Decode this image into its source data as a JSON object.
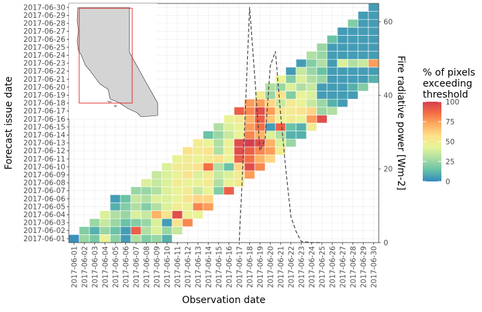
{
  "chart_data": {
    "type": "heatmap",
    "title": "",
    "xlabel": "Observation date",
    "ylabel": "Forecast issue date",
    "y2label": "Fire radiative power [Wm-2]",
    "y2lim": [
      0,
      65
    ],
    "y2ticks": [
      0,
      20,
      40,
      60
    ],
    "dates": [
      "2017-06-01",
      "2017-06-02",
      "2017-06-03",
      "2017-06-04",
      "2017-06-05",
      "2017-06-06",
      "2017-06-07",
      "2017-06-08",
      "2017-06-09",
      "2017-06-10",
      "2017-06-11",
      "2017-06-12",
      "2017-06-13",
      "2017-06-14",
      "2017-06-15",
      "2017-06-16",
      "2017-06-17",
      "2017-06-18",
      "2017-06-19",
      "2017-06-20",
      "2017-06-21",
      "2017-06-22",
      "2017-06-23",
      "2017-06-24",
      "2017-06-25",
      "2017-06-26",
      "2017-06-27",
      "2017-06-28",
      "2017-06-29",
      "2017-06-30"
    ],
    "cells": [
      [
        0,
        0,
        2
      ],
      [
        1,
        0,
        25
      ],
      [
        2,
        0,
        18
      ],
      [
        3,
        0,
        45
      ],
      [
        4,
        0,
        22
      ],
      [
        5,
        0,
        5
      ],
      [
        6,
        0,
        30
      ],
      [
        7,
        0,
        20
      ],
      [
        8,
        0,
        25
      ],
      [
        9,
        0,
        10
      ],
      [
        1,
        1,
        20
      ],
      [
        2,
        1,
        10
      ],
      [
        3,
        1,
        25
      ],
      [
        4,
        1,
        15
      ],
      [
        5,
        1,
        5
      ],
      [
        6,
        1,
        90
      ],
      [
        7,
        1,
        30
      ],
      [
        8,
        1,
        40
      ],
      [
        9,
        1,
        25
      ],
      [
        10,
        1,
        35
      ],
      [
        2,
        2,
        25
      ],
      [
        3,
        2,
        35
      ],
      [
        4,
        2,
        25
      ],
      [
        5,
        2,
        15
      ],
      [
        6,
        2,
        20
      ],
      [
        7,
        2,
        25
      ],
      [
        8,
        2,
        40
      ],
      [
        9,
        2,
        5
      ],
      [
        10,
        2,
        55
      ],
      [
        11,
        2,
        80
      ],
      [
        3,
        3,
        40
      ],
      [
        4,
        3,
        30
      ],
      [
        5,
        3,
        25
      ],
      [
        6,
        3,
        40
      ],
      [
        7,
        3,
        35
      ],
      [
        8,
        3,
        70
      ],
      [
        9,
        3,
        55
      ],
      [
        10,
        3,
        95
      ],
      [
        11,
        3,
        45
      ],
      [
        12,
        3,
        45
      ],
      [
        4,
        4,
        10
      ],
      [
        5,
        4,
        20
      ],
      [
        6,
        4,
        30
      ],
      [
        7,
        4,
        20
      ],
      [
        8,
        4,
        30
      ],
      [
        9,
        4,
        40
      ],
      [
        10,
        4,
        50
      ],
      [
        11,
        4,
        45
      ],
      [
        12,
        4,
        80
      ],
      [
        13,
        4,
        75
      ],
      [
        4,
        5,
        5
      ],
      [
        5,
        5,
        15
      ],
      [
        6,
        5,
        35
      ],
      [
        7,
        5,
        30
      ],
      [
        8,
        5,
        40
      ],
      [
        9,
        5,
        40
      ],
      [
        10,
        5,
        45
      ],
      [
        11,
        5,
        55
      ],
      [
        12,
        5,
        60
      ],
      [
        13,
        5,
        60
      ],
      [
        6,
        6,
        25
      ],
      [
        7,
        6,
        25
      ],
      [
        8,
        6,
        30
      ],
      [
        9,
        6,
        40
      ],
      [
        10,
        6,
        45
      ],
      [
        11,
        6,
        50
      ],
      [
        12,
        6,
        35
      ],
      [
        13,
        6,
        45
      ],
      [
        14,
        6,
        20
      ],
      [
        15,
        6,
        90
      ],
      [
        7,
        7,
        40
      ],
      [
        8,
        7,
        35
      ],
      [
        9,
        7,
        40
      ],
      [
        10,
        7,
        50
      ],
      [
        11,
        7,
        45
      ],
      [
        12,
        7,
        45
      ],
      [
        13,
        7,
        50
      ],
      [
        14,
        7,
        30
      ],
      [
        15,
        7,
        45
      ],
      [
        16,
        7,
        50
      ],
      [
        8,
        8,
        35
      ],
      [
        9,
        8,
        40
      ],
      [
        10,
        8,
        45
      ],
      [
        11,
        8,
        55
      ],
      [
        12,
        8,
        40
      ],
      [
        13,
        8,
        50
      ],
      [
        14,
        8,
        35
      ],
      [
        15,
        8,
        40
      ],
      [
        16,
        8,
        50
      ],
      [
        17,
        8,
        75
      ],
      [
        9,
        9,
        40
      ],
      [
        10,
        9,
        50
      ],
      [
        11,
        9,
        50
      ],
      [
        12,
        9,
        55
      ],
      [
        13,
        9,
        85
      ],
      [
        14,
        9,
        30
      ],
      [
        15,
        9,
        15
      ],
      [
        16,
        9,
        60
      ],
      [
        17,
        9,
        95
      ],
      [
        18,
        9,
        80
      ],
      [
        10,
        10,
        45
      ],
      [
        11,
        10,
        50
      ],
      [
        12,
        10,
        45
      ],
      [
        13,
        10,
        50
      ],
      [
        14,
        10,
        55
      ],
      [
        15,
        10,
        45
      ],
      [
        16,
        10,
        90
      ],
      [
        17,
        10,
        85
      ],
      [
        18,
        10,
        70
      ],
      [
        19,
        10,
        60
      ],
      [
        11,
        11,
        55
      ],
      [
        12,
        11,
        50
      ],
      [
        13,
        11,
        55
      ],
      [
        14,
        11,
        30
      ],
      [
        15,
        11,
        45
      ],
      [
        16,
        11,
        95
      ],
      [
        17,
        11,
        90
      ],
      [
        18,
        11,
        80
      ],
      [
        19,
        11,
        75
      ],
      [
        20,
        11,
        50
      ],
      [
        12,
        12,
        50
      ],
      [
        13,
        12,
        45
      ],
      [
        14,
        12,
        30
      ],
      [
        15,
        12,
        45
      ],
      [
        16,
        12,
        95
      ],
      [
        17,
        12,
        100
      ],
      [
        18,
        12,
        95
      ],
      [
        19,
        12,
        70
      ],
      [
        20,
        12,
        40
      ],
      [
        21,
        12,
        25
      ],
      [
        13,
        13,
        15
      ],
      [
        14,
        13,
        25
      ],
      [
        15,
        13,
        35
      ],
      [
        16,
        13,
        45
      ],
      [
        17,
        13,
        80
      ],
      [
        18,
        13,
        70
      ],
      [
        19,
        13,
        40
      ],
      [
        20,
        13,
        30
      ],
      [
        21,
        13,
        10
      ],
      [
        22,
        13,
        10
      ],
      [
        14,
        14,
        30
      ],
      [
        15,
        14,
        40
      ],
      [
        16,
        14,
        45
      ],
      [
        17,
        14,
        75
      ],
      [
        18,
        14,
        85
      ],
      [
        19,
        14,
        5
      ],
      [
        20,
        14,
        90
      ],
      [
        21,
        14,
        15
      ],
      [
        22,
        14,
        10
      ],
      [
        23,
        14,
        50
      ],
      [
        15,
        15,
        45
      ],
      [
        16,
        15,
        50
      ],
      [
        17,
        15,
        70
      ],
      [
        18,
        15,
        90
      ],
      [
        19,
        15,
        65
      ],
      [
        20,
        15,
        45
      ],
      [
        21,
        15,
        50
      ],
      [
        22,
        15,
        45
      ],
      [
        23,
        15,
        75
      ],
      [
        24,
        15,
        95
      ],
      [
        16,
        16,
        90
      ],
      [
        17,
        16,
        80
      ],
      [
        18,
        16,
        95
      ],
      [
        19,
        16,
        75
      ],
      [
        20,
        16,
        55
      ],
      [
        21,
        16,
        50
      ],
      [
        22,
        16,
        55
      ],
      [
        23,
        16,
        60
      ],
      [
        24,
        16,
        25
      ],
      [
        25,
        16,
        30
      ],
      [
        17,
        17,
        75
      ],
      [
        18,
        17,
        75
      ],
      [
        19,
        17,
        60
      ],
      [
        20,
        17,
        35
      ],
      [
        21,
        17,
        50
      ],
      [
        22,
        17,
        45
      ],
      [
        23,
        17,
        35
      ],
      [
        24,
        17,
        25
      ],
      [
        25,
        17,
        10
      ],
      [
        26,
        17,
        5
      ],
      [
        18,
        18,
        50
      ],
      [
        19,
        18,
        25
      ],
      [
        20,
        18,
        55
      ],
      [
        21,
        18,
        20
      ],
      [
        22,
        18,
        45
      ],
      [
        23,
        18,
        40
      ],
      [
        24,
        18,
        5
      ],
      [
        25,
        18,
        5
      ],
      [
        26,
        18,
        5
      ],
      [
        27,
        18,
        5
      ],
      [
        19,
        19,
        30
      ],
      [
        20,
        19,
        25
      ],
      [
        21,
        19,
        40
      ],
      [
        22,
        19,
        30
      ],
      [
        23,
        19,
        35
      ],
      [
        24,
        19,
        5
      ],
      [
        25,
        19,
        5
      ],
      [
        26,
        19,
        5
      ],
      [
        27,
        19,
        10
      ],
      [
        28,
        19,
        20
      ],
      [
        20,
        20,
        45
      ],
      [
        21,
        20,
        20
      ],
      [
        22,
        20,
        40
      ],
      [
        23,
        20,
        30
      ],
      [
        24,
        20,
        25
      ],
      [
        25,
        20,
        5
      ],
      [
        26,
        20,
        5
      ],
      [
        27,
        20,
        5
      ],
      [
        28,
        20,
        5
      ],
      [
        29,
        20,
        10
      ],
      [
        21,
        21,
        5
      ],
      [
        22,
        21,
        35
      ],
      [
        23,
        21,
        25
      ],
      [
        24,
        21,
        15
      ],
      [
        25,
        21,
        5
      ],
      [
        26,
        21,
        5
      ],
      [
        27,
        21,
        5
      ],
      [
        28,
        21,
        5
      ],
      [
        29,
        21,
        5
      ],
      [
        22,
        22,
        5
      ],
      [
        23,
        22,
        20
      ],
      [
        24,
        22,
        30
      ],
      [
        25,
        22,
        5
      ],
      [
        26,
        22,
        40
      ],
      [
        27,
        22,
        30
      ],
      [
        28,
        22,
        35
      ],
      [
        29,
        22,
        75
      ],
      [
        23,
        23,
        30
      ],
      [
        24,
        23,
        25
      ],
      [
        25,
        23,
        5
      ],
      [
        26,
        23,
        5
      ],
      [
        27,
        23,
        5
      ],
      [
        28,
        23,
        5
      ],
      [
        29,
        23,
        5
      ],
      [
        24,
        24,
        25
      ],
      [
        25,
        24,
        5
      ],
      [
        26,
        24,
        5
      ],
      [
        27,
        24,
        5
      ],
      [
        28,
        24,
        5
      ],
      [
        29,
        24,
        5
      ],
      [
        25,
        25,
        15
      ],
      [
        26,
        25,
        5
      ],
      [
        27,
        25,
        5
      ],
      [
        28,
        25,
        5
      ],
      [
        29,
        25,
        5
      ],
      [
        26,
        26,
        5
      ],
      [
        27,
        26,
        5
      ],
      [
        28,
        26,
        5
      ],
      [
        29,
        26,
        5
      ],
      [
        27,
        27,
        20
      ],
      [
        28,
        27,
        5
      ],
      [
        29,
        27,
        5
      ],
      [
        28,
        28,
        5
      ],
      [
        29,
        28,
        5
      ],
      [
        29,
        29,
        5
      ]
    ],
    "frp_series": {
      "x": [
        16.0,
        16.5,
        17.0,
        17.5,
        18.0,
        18.5,
        19.0,
        19.5,
        20.0,
        20.5,
        21.0,
        21.5,
        22.0,
        23.0,
        24.0
      ],
      "y": [
        0.5,
        30,
        64,
        45,
        25,
        28,
        48,
        52,
        35,
        20,
        7,
        3,
        0.3,
        0,
        0
      ]
    },
    "legend": {
      "title": [
        "% of pixels",
        "exceeding",
        "threshold"
      ],
      "ticks": [
        0,
        25,
        50,
        75,
        100
      ],
      "colors": [
        "#3288bd",
        "#66c2a5",
        "#abdda4",
        "#e6f598",
        "#fee08b",
        "#fdae61",
        "#f46d43",
        "#d53e4f"
      ]
    },
    "inset": {
      "box_color": "#e41a1c",
      "land_color": "#d4d4d4"
    }
  }
}
